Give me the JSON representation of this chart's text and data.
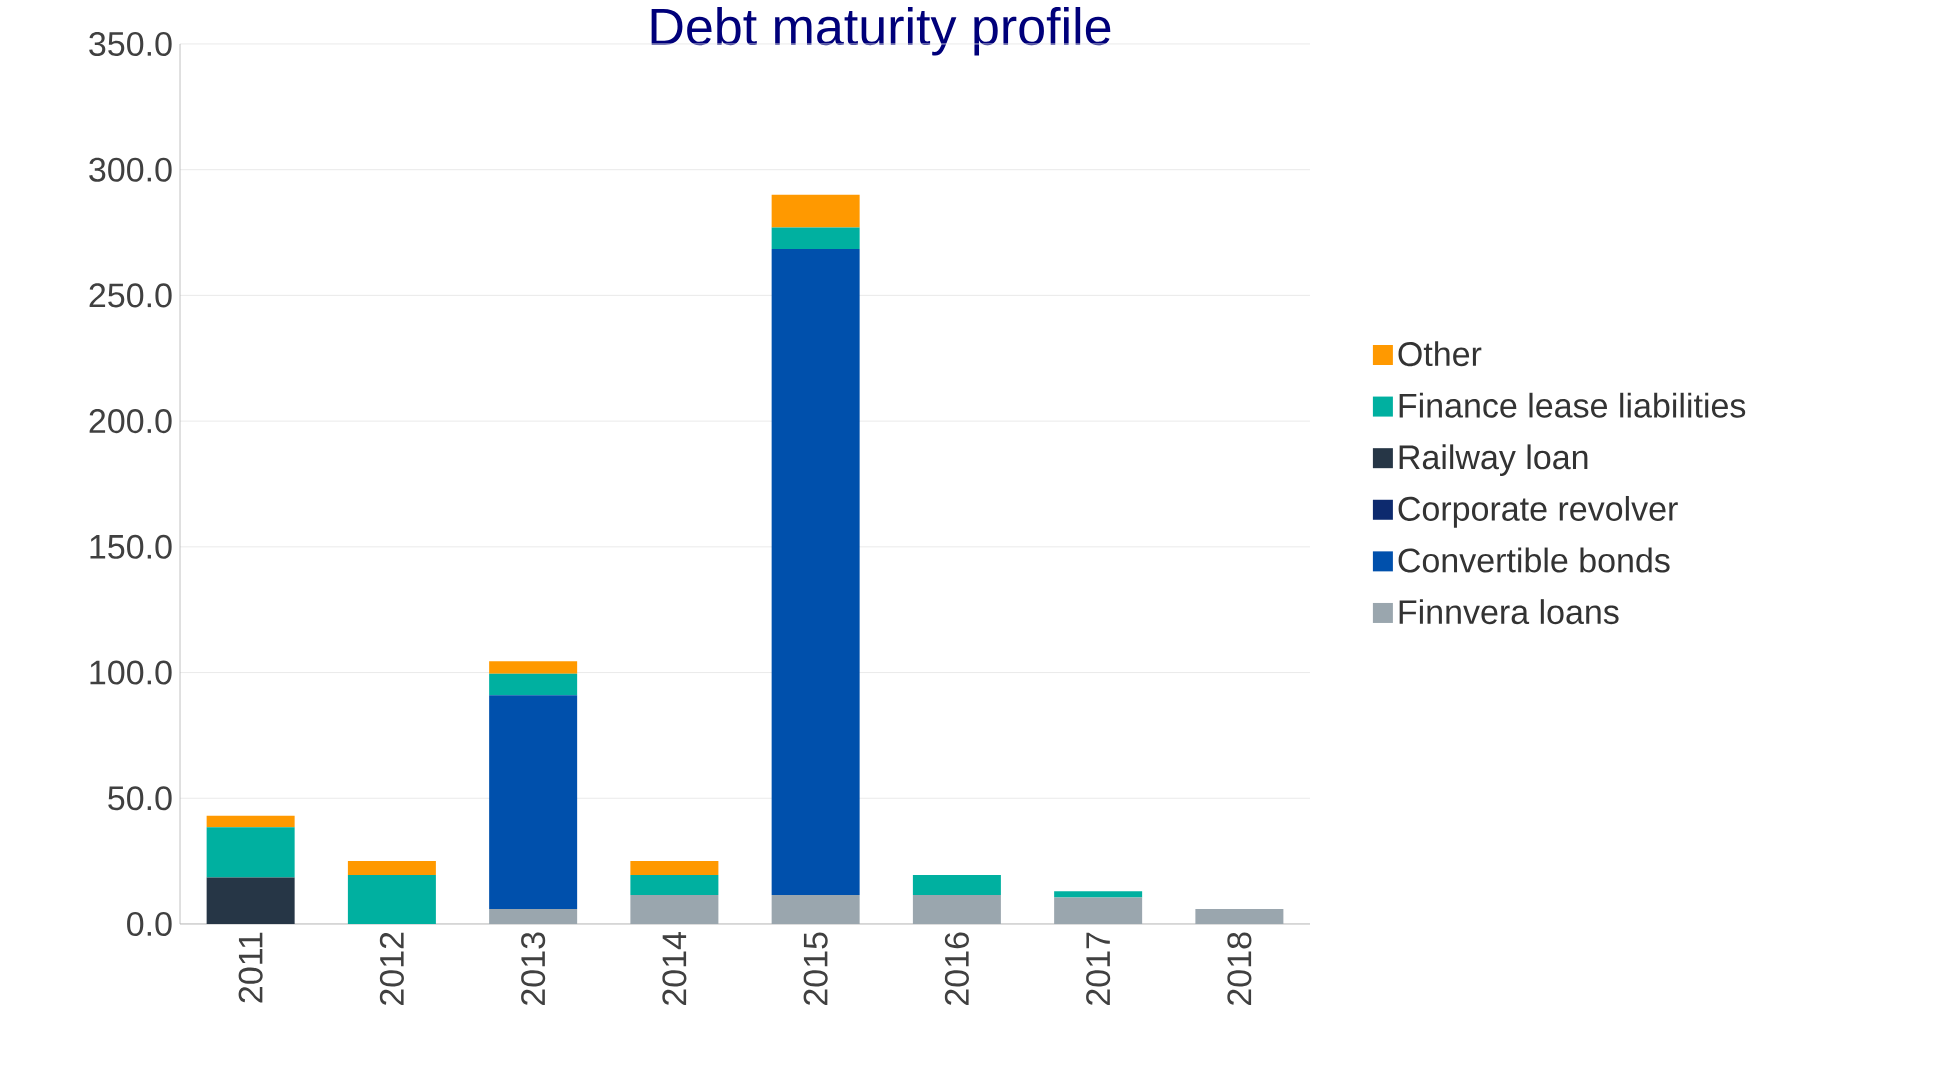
{
  "chart_data": {
    "type": "bar",
    "title": "Debt maturity profile",
    "stacked": true,
    "categories": [
      "2011",
      "2012",
      "2013",
      "2014",
      "2015",
      "2016",
      "2017",
      "2018"
    ],
    "series": [
      {
        "name": "Finnvera loans",
        "color": "#9aa6ae",
        "values": [
          0,
          0,
          6,
          11.5,
          11.5,
          11.5,
          10.5,
          6
        ]
      },
      {
        "name": "Convertible bonds",
        "color": "#0050ac",
        "values": [
          0,
          0,
          85,
          0,
          257,
          0,
          0,
          0
        ]
      },
      {
        "name": "Corporate revolver",
        "color": "#0d2a6e",
        "values": [
          0,
          0,
          0,
          0,
          0,
          0,
          0,
          0
        ]
      },
      {
        "name": "Railway loan",
        "color": "#263646",
        "values": [
          18.5,
          0,
          0,
          0,
          0,
          0,
          0,
          0
        ]
      },
      {
        "name": "Finance lease liabilities",
        "color": "#00b0a0",
        "values": [
          20,
          19.5,
          8.5,
          8,
          8.5,
          8,
          2.5,
          0
        ]
      },
      {
        "name": "Other",
        "color": "#ff9900",
        "values": [
          4.5,
          5.5,
          5,
          5.5,
          13,
          0,
          0,
          0
        ]
      }
    ],
    "ylim": [
      0,
      350
    ],
    "yticks": [
      {
        "value": 0,
        "label": "0.0"
      },
      {
        "value": 50,
        "label": "50.0"
      },
      {
        "value": 100,
        "label": "100.0"
      },
      {
        "value": 150,
        "label": "150.0"
      },
      {
        "value": 200,
        "label": "200.0"
      },
      {
        "value": 250,
        "label": "250.0"
      },
      {
        "value": 300,
        "label": "300.0"
      },
      {
        "value": 350,
        "label": "350.0"
      }
    ],
    "grid": "y",
    "legend": "right"
  }
}
